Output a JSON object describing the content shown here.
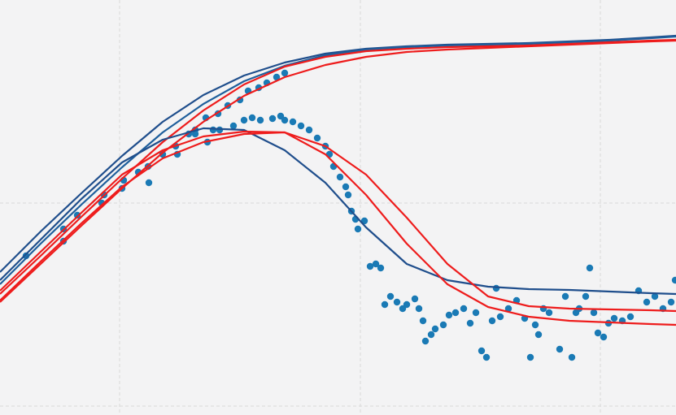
{
  "chart_data": {
    "type": "line",
    "xlim": [
      0,
      831
    ],
    "ylim": [
      511,
      0
    ],
    "xticks": [
      147,
      443,
      738
    ],
    "yticks": [
      250,
      500
    ],
    "grid": true,
    "x": [
      0,
      50,
      100,
      150,
      200,
      250,
      300,
      350,
      400,
      450,
      500,
      550,
      600,
      650,
      700,
      750,
      800,
      831
    ],
    "series": [
      {
        "color": "#1f4e8c",
        "values": [
          335,
          285,
          238,
          192,
          150,
          117,
          93,
          77,
          66,
          60,
          57,
          55,
          54,
          53,
          51,
          49,
          46,
          44
        ]
      },
      {
        "color": "#1f5f9c",
        "values": [
          350,
          300,
          252,
          206,
          163,
          128,
          100,
          81,
          68,
          61,
          58,
          56,
          55,
          54,
          52,
          50,
          47,
          45
        ]
      },
      {
        "color": "#ee1c1c",
        "values": [
          362,
          315,
          267,
          220,
          175,
          136,
          104,
          82,
          70,
          63,
          60,
          58,
          57,
          56,
          54,
          52,
          50,
          49
        ]
      },
      {
        "color": "#ee1c1c",
        "values": [
          372,
          325,
          278,
          232,
          188,
          150,
          118,
          95,
          80,
          70,
          64,
          61,
          59,
          57,
          55,
          53,
          51,
          50
        ]
      },
      {
        "color": "#1f4e8c",
        "values": [
          345,
          295,
          245,
          200,
          172,
          158,
          160,
          185,
          225,
          280,
          325,
          345,
          353,
          356,
          357,
          359,
          361,
          362
        ]
      },
      {
        "color": "#ee1c1c",
        "values": [
          358,
          310,
          262,
          215,
          185,
          168,
          162,
          163,
          180,
          215,
          268,
          325,
          365,
          377,
          380,
          381,
          382,
          383
        ]
      },
      {
        "color": "#ee1c1c",
        "values": [
          370,
          322,
          275,
          230,
          195,
          175,
          165,
          163,
          190,
          240,
          300,
          350,
          378,
          390,
          395,
          397,
          399,
          400
        ]
      }
    ],
    "scatter": {
      "color": "#1a7ab5",
      "x": [
        32,
        78,
        78,
        95,
        125,
        128,
        150,
        152,
        170,
        182,
        183,
        200,
        216,
        218,
        232,
        240,
        253,
        255,
        268,
        270,
        280,
        295,
        305,
        318,
        328,
        340,
        350,
        240,
        262,
        287,
        300,
        310,
        320,
        335,
        345,
        350,
        360,
        370,
        380,
        390,
        400,
        405,
        410,
        418,
        425,
        428,
        432,
        437,
        440,
        448,
        455,
        462,
        468,
        473,
        480,
        488,
        495,
        500,
        510,
        515,
        520,
        523,
        530,
        535,
        545,
        552,
        560,
        570,
        578,
        585,
        592,
        598,
        605,
        610,
        615,
        625,
        635,
        645,
        652,
        658,
        662,
        668,
        675,
        688,
        695,
        703,
        708,
        712,
        720,
        725,
        730,
        735,
        742,
        748,
        755,
        765,
        775,
        785,
        795,
        805,
        815,
        825,
        830
      ],
      "y": [
        315,
        282,
        297,
        265,
        250,
        240,
        232,
        222,
        212,
        205,
        225,
        190,
        180,
        190,
        165,
        160,
        145,
        175,
        140,
        160,
        130,
        123,
        112,
        108,
        102,
        95,
        90,
        165,
        160,
        155,
        148,
        145,
        148,
        146,
        143,
        148,
        150,
        155,
        160,
        170,
        180,
        190,
        205,
        218,
        230,
        240,
        260,
        270,
        282,
        272,
        328,
        325,
        330,
        375,
        365,
        372,
        380,
        375,
        368,
        380,
        395,
        420,
        412,
        405,
        400,
        388,
        385,
        380,
        398,
        385,
        432,
        440,
        395,
        355,
        390,
        380,
        370,
        392,
        440,
        400,
        412,
        380,
        385,
        430,
        365,
        440,
        385,
        380,
        365,
        330,
        385,
        410,
        415,
        398,
        392,
        395,
        390,
        358,
        372,
        365,
        380,
        372,
        345
      ]
    }
  }
}
